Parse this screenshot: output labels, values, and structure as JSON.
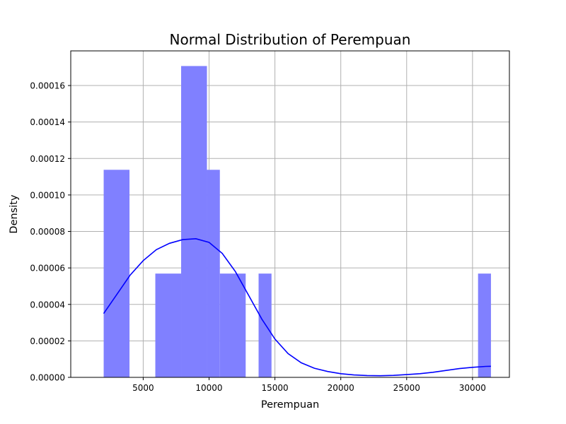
{
  "chart_data": {
    "type": "bar",
    "title": "Normal Distribution of Perempuan",
    "xlabel": "Perempuan",
    "ylabel": "Density",
    "xlim": [
      -500,
      32800
    ],
    "ylim": [
      0,
      0.000179
    ],
    "xticks": [
      5000,
      10000,
      15000,
      20000,
      25000,
      30000
    ],
    "xtick_labels": [
      "5000",
      "10000",
      "15000",
      "20000",
      "25000",
      "30000"
    ],
    "yticks": [
      0,
      2e-05,
      4e-05,
      6e-05,
      8e-05,
      0.0001,
      0.00012,
      0.00014,
      0.00016
    ],
    "ytick_labels": [
      "0.00000",
      "0.00002",
      "0.00004",
      "0.00006",
      "0.00008",
      "0.00010",
      "0.00012",
      "0.00014",
      "0.00016"
    ],
    "grid": true,
    "histogram": {
      "color": "#8080ff",
      "bins": [
        {
          "x0": 2000,
          "x1": 3960,
          "density": 0.0001138
        },
        {
          "x0": 5920,
          "x1": 7880,
          "density": 5.69e-05
        },
        {
          "x0": 7880,
          "x1": 9840,
          "density": 0.0001707
        },
        {
          "x0": 9840,
          "x1": 10820,
          "density": 0.0001138
        },
        {
          "x0": 10820,
          "x1": 12780,
          "density": 5.69e-05
        },
        {
          "x0": 13760,
          "x1": 14740,
          "density": 5.69e-05
        },
        {
          "x0": 30420,
          "x1": 31400,
          "density": 5.69e-05
        }
      ]
    },
    "kde_curve": {
      "color": "#0000ff",
      "points": [
        [
          2000,
          3.5e-05
        ],
        [
          3000,
          4.55e-05
        ],
        [
          4000,
          5.6e-05
        ],
        [
          5000,
          6.4e-05
        ],
        [
          6000,
          7e-05
        ],
        [
          7000,
          7.35e-05
        ],
        [
          8000,
          7.55e-05
        ],
        [
          9000,
          7.6e-05
        ],
        [
          10000,
          7.4e-05
        ],
        [
          11000,
          6.8e-05
        ],
        [
          12000,
          5.8e-05
        ],
        [
          13000,
          4.5e-05
        ],
        [
          14000,
          3.2e-05
        ],
        [
          15000,
          2.1e-05
        ],
        [
          16000,
          1.3e-05
        ],
        [
          17000,
          8e-06
        ],
        [
          18000,
          5e-06
        ],
        [
          19000,
          3.2e-06
        ],
        [
          20000,
          2e-06
        ],
        [
          21000,
          1.3e-06
        ],
        [
          22000,
          1e-06
        ],
        [
          23000,
          9e-07
        ],
        [
          24000,
          1.1e-06
        ],
        [
          25000,
          1.5e-06
        ],
        [
          26000,
          2e-06
        ],
        [
          27000,
          2.8e-06
        ],
        [
          28000,
          3.8e-06
        ],
        [
          29000,
          4.8e-06
        ],
        [
          30000,
          5.5e-06
        ],
        [
          31000,
          6e-06
        ],
        [
          31400,
          6.1e-06
        ]
      ]
    }
  }
}
